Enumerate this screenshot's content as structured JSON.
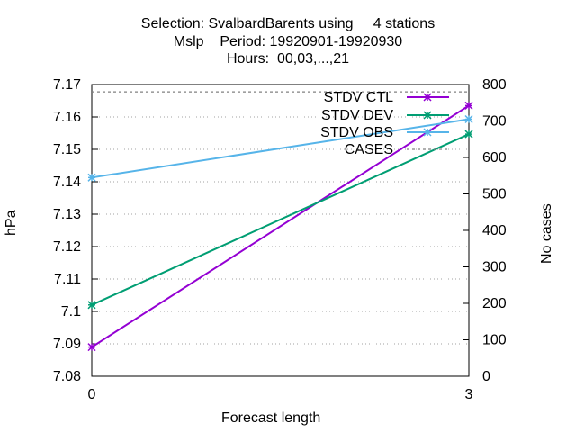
{
  "chart_data": {
    "type": "line",
    "title_lines": [
      "Selection: SvalbardBarents using     4 stations",
      "Mslp    Period: 19920901-19920930",
      "Hours:  00,03,...,21"
    ],
    "xlabel": "Forecast length",
    "ylabel": "hPa",
    "y2label": "No cases",
    "x": [
      0,
      3
    ],
    "xticks": [
      "0",
      "3"
    ],
    "xlim": [
      0,
      3
    ],
    "ylim": [
      7.08,
      7.17
    ],
    "yticks": [
      "7.08",
      "7.09",
      "7.1",
      "7.11",
      "7.12",
      "7.13",
      "7.14",
      "7.15",
      "7.16",
      "7.17"
    ],
    "y2lim": [
      0,
      800
    ],
    "y2ticks": [
      "0",
      "100",
      "200",
      "300",
      "400",
      "500",
      "600",
      "700",
      "800"
    ],
    "grid": true,
    "legend_position": "top-right",
    "series": [
      {
        "name": "STDV CTL",
        "axis": "y1",
        "values": [
          7.089,
          7.1635
        ],
        "color": "#9400d3",
        "marker": "asterisk"
      },
      {
        "name": "STDV DEV",
        "axis": "y1",
        "values": [
          7.102,
          7.1547
        ],
        "color": "#009e73",
        "marker": "asterisk"
      },
      {
        "name": "STDV OBS",
        "axis": "y1",
        "values": [
          7.1413,
          7.1593
        ],
        "color": "#56b4e9",
        "marker": "asterisk"
      },
      {
        "name": "CASES",
        "axis": "y2",
        "values": [
          780,
          780
        ],
        "color": "#808080",
        "marker": "none",
        "dashed": true
      }
    ]
  }
}
